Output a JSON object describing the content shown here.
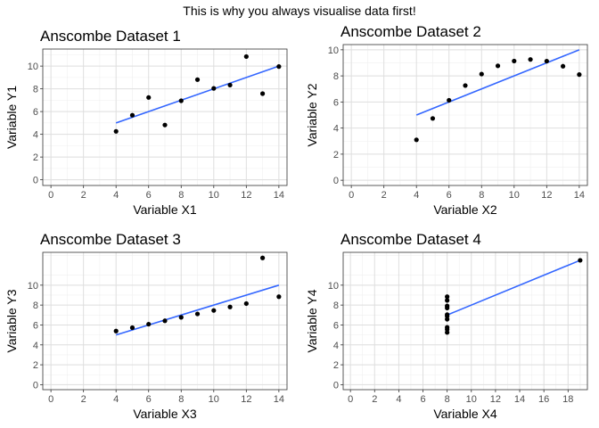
{
  "suptitle": "This is why you always visualise data first!",
  "colors": {
    "point": "#000000",
    "fit_line": "#3366FF",
    "grid_major": "#dedede",
    "grid_minor": "#efefef",
    "border": "#333333"
  },
  "chart_data": [
    {
      "type": "scatter",
      "title": "Anscombe Dataset 1",
      "xlabel": "Variable X1",
      "ylabel": "Variable Y1",
      "xlim": [
        -0.5,
        14.5
      ],
      "ylim": [
        -0.5,
        11.5
      ],
      "xticks": [
        0,
        2,
        4,
        6,
        8,
        10,
        12,
        14
      ],
      "yticks": [
        0,
        2,
        4,
        6,
        8,
        10
      ],
      "x": [
        10,
        8,
        13,
        9,
        11,
        14,
        6,
        4,
        12,
        7,
        5
      ],
      "y": [
        8.04,
        6.95,
        7.58,
        8.81,
        8.33,
        9.96,
        7.24,
        4.26,
        10.84,
        4.82,
        5.68
      ],
      "fit": {
        "x": [
          4,
          14
        ],
        "y": [
          5.0,
          10.0
        ]
      },
      "grid": true
    },
    {
      "type": "scatter",
      "title": "Anscombe Dataset 2",
      "xlabel": "Variable X2",
      "ylabel": "Variable Y2",
      "xlim": [
        -0.5,
        14.5
      ],
      "ylim": [
        -0.4,
        10.4
      ],
      "xticks": [
        0,
        2,
        4,
        6,
        8,
        10,
        12,
        14
      ],
      "yticks": [
        0,
        2,
        4,
        6,
        8,
        10
      ],
      "x": [
        10,
        8,
        13,
        9,
        11,
        14,
        6,
        4,
        12,
        7,
        5
      ],
      "y": [
        9.14,
        8.14,
        8.74,
        8.77,
        9.26,
        8.1,
        6.13,
        3.1,
        9.13,
        7.26,
        4.74
      ],
      "fit": {
        "x": [
          4,
          14
        ],
        "y": [
          5.0,
          10.0
        ]
      },
      "grid": true
    },
    {
      "type": "scatter",
      "title": "Anscombe Dataset 3",
      "xlabel": "Variable X3",
      "ylabel": "Variable Y3",
      "xlim": [
        -0.5,
        14.5
      ],
      "ylim": [
        -0.5,
        13.3
      ],
      "xticks": [
        0,
        2,
        4,
        6,
        8,
        10,
        12,
        14
      ],
      "yticks": [
        0,
        2,
        4,
        6,
        8,
        10
      ],
      "x": [
        10,
        8,
        13,
        9,
        11,
        14,
        6,
        4,
        12,
        7,
        5
      ],
      "y": [
        7.46,
        6.77,
        12.74,
        7.11,
        7.81,
        8.84,
        6.08,
        5.39,
        8.15,
        6.42,
        5.73
      ],
      "fit": {
        "x": [
          4,
          14
        ],
        "y": [
          5.0,
          10.0
        ]
      },
      "grid": true
    },
    {
      "type": "scatter",
      "title": "Anscombe Dataset 4",
      "xlabel": "Variable X4",
      "ylabel": "Variable Y4",
      "xlim": [
        -0.6,
        19.6
      ],
      "ylim": [
        -0.5,
        13.3
      ],
      "xticks": [
        0,
        2,
        4,
        6,
        8,
        10,
        12,
        14,
        16,
        18
      ],
      "yticks": [
        0,
        2,
        4,
        6,
        8,
        10
      ],
      "x": [
        8,
        8,
        8,
        8,
        8,
        8,
        8,
        19,
        8,
        8,
        8
      ],
      "y": [
        6.58,
        5.76,
        7.71,
        8.84,
        8.47,
        7.04,
        5.25,
        12.5,
        5.56,
        7.91,
        6.89
      ],
      "fit": {
        "x": [
          8,
          19
        ],
        "y": [
          7.0,
          12.5
        ]
      },
      "grid": true
    }
  ]
}
